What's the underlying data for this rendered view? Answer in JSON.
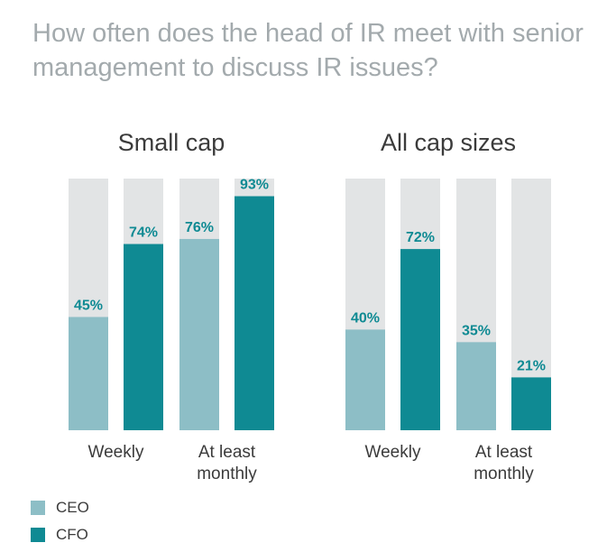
{
  "title": "How often does the head of IR meet with senior management to discuss IR issues?",
  "colors": {
    "ceo": "#8dbec6",
    "cfo": "#0f8a93",
    "background_bar": "#e2e4e5",
    "label": "#0f8a93"
  },
  "legend": [
    {
      "name": "CEO",
      "color": "#8dbec6"
    },
    {
      "name": "CFO",
      "color": "#0f8a93"
    }
  ],
  "chart_data": [
    {
      "type": "bar",
      "title": "Small cap",
      "categories": [
        "Weekly",
        "At least monthly"
      ],
      "series": [
        {
          "name": "CEO",
          "values": [
            45,
            76
          ]
        },
        {
          "name": "CFO",
          "values": [
            74,
            93
          ]
        }
      ],
      "ylim": [
        0,
        100
      ],
      "value_suffix": "%"
    },
    {
      "type": "bar",
      "title": "All cap sizes",
      "categories": [
        "Weekly",
        "At least monthly"
      ],
      "series": [
        {
          "name": "CEO",
          "values": [
            40,
            35
          ]
        },
        {
          "name": "CFO",
          "values": [
            72,
            21
          ]
        }
      ],
      "ylim": [
        0,
        100
      ],
      "value_suffix": "%"
    }
  ]
}
